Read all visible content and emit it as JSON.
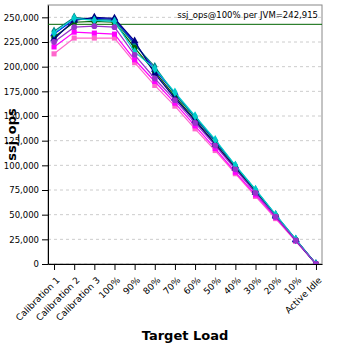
{
  "chart_data": {
    "type": "line",
    "x_label": "Target Load",
    "y_label": "ssj_ops",
    "categories": [
      "Calibration 1",
      "Calibration 2",
      "Calibration 3",
      "100%",
      "90%",
      "80%",
      "70%",
      "60%",
      "50%",
      "40%",
      "30%",
      "20%",
      "10%",
      "Active Idle"
    ],
    "series": [
      {
        "color": "#ff66cc",
        "marker": "square",
        "values": [
          213000,
          229000,
          229000,
          229000,
          204000,
          181000,
          160000,
          137000,
          115000,
          91500,
          68500,
          46000,
          23000,
          0
        ]
      },
      {
        "color": "#ff00ff",
        "marker": "square",
        "values": [
          220000,
          235000,
          234000,
          233000,
          207000,
          185000,
          163000,
          140000,
          117000,
          93000,
          70000,
          47000,
          23500,
          0
        ]
      },
      {
        "color": "#0000ff",
        "marker": "triangle",
        "values": [
          233000,
          248000,
          249000,
          248000,
          224000,
          197000,
          173000,
          148000,
          124000,
          99000,
          74500,
          49500,
          24800,
          0
        ]
      },
      {
        "color": "#008080",
        "marker": "diamond",
        "values": [
          236000,
          250000,
          248000,
          247000,
          222000,
          200000,
          172000,
          149000,
          125000,
          99500,
          75000,
          49800,
          24900,
          0
        ]
      },
      {
        "color": "#006400",
        "marker": "circle",
        "values": [
          230000,
          245000,
          246000,
          245000,
          219000,
          195000,
          170000,
          146000,
          122000,
          97500,
          73000,
          48800,
          24400,
          0
        ]
      },
      {
        "color": "#000080",
        "marker": "triangle",
        "values": [
          228000,
          247000,
          250000,
          249000,
          226000,
          193000,
          168000,
          145000,
          121000,
          97000,
          72500,
          48500,
          24200,
          0
        ]
      },
      {
        "color": "#00cccc",
        "marker": "diamond",
        "values": [
          234000,
          249000,
          247000,
          246000,
          215000,
          198000,
          174000,
          150000,
          126000,
          100000,
          75500,
          50000,
          25000,
          0
        ]
      },
      {
        "color": "#9933cc",
        "marker": "circle",
        "values": [
          225000,
          240000,
          241000,
          240000,
          212000,
          188000,
          166000,
          143000,
          120000,
          96000,
          72000,
          48000,
          24000,
          0
        ]
      }
    ],
    "annotations": [
      {
        "text": "ssj_ops@100% per JVM=242,915",
        "value": 242915
      }
    ],
    "ylim": [
      0,
      262500
    ],
    "yticks": [
      0,
      {
        "value": 25000,
        "label": "25,000"
      },
      {
        "value": 50000,
        "label": "50,000"
      },
      {
        "value": 75000,
        "label": "75,000"
      },
      {
        "value": 100000,
        "label": "100,000"
      },
      {
        "value": 125000,
        "label": "125,000"
      },
      {
        "value": 150000,
        "label": "150,000"
      },
      {
        "value": 175000,
        "label": "175,000"
      },
      {
        "value": 200000,
        "label": "200,000"
      },
      {
        "value": 225000,
        "label": "225,000"
      },
      {
        "value": 250000,
        "label": "250,000"
      }
    ],
    "grid": true
  }
}
